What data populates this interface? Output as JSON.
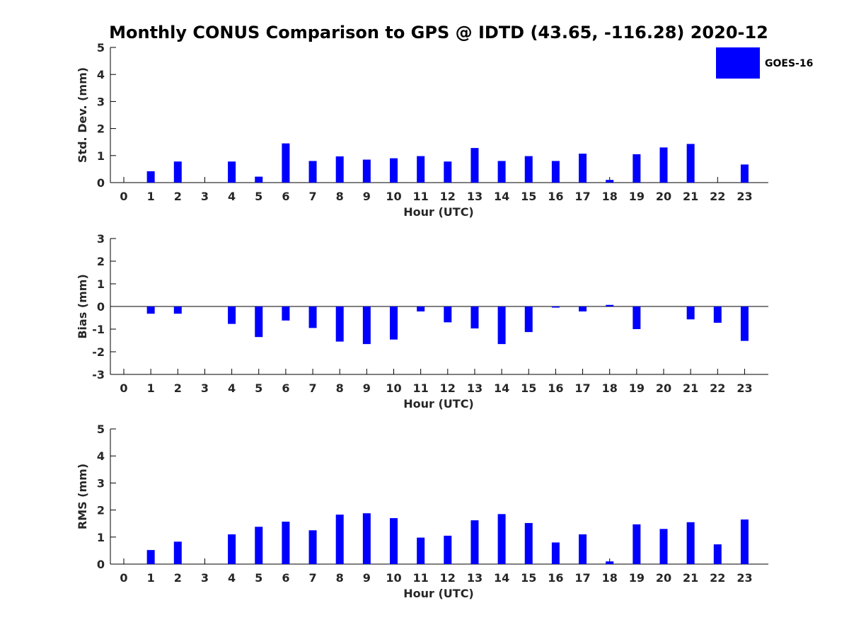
{
  "figure": {
    "title": "Monthly CONUS Comparison to GPS @ IDTD (43.65, -116.28) 2020-12"
  },
  "legend": {
    "label": "GOES-16",
    "color": "#0000ff",
    "placement": "top-right"
  },
  "chart_data": [
    {
      "type": "bar",
      "title": "",
      "xlabel": "Hour (UTC)",
      "ylabel": "Std. Dev. (mm)",
      "ylim": [
        0,
        5
      ],
      "yticks": [
        0,
        1,
        2,
        3,
        4,
        5
      ],
      "categories": [
        "0",
        "1",
        "2",
        "3",
        "4",
        "5",
        "6",
        "7",
        "8",
        "9",
        "10",
        "11",
        "12",
        "13",
        "14",
        "15",
        "16",
        "17",
        "18",
        "19",
        "20",
        "21",
        "22",
        "23"
      ],
      "series": [
        {
          "name": "GOES-16",
          "color": "#0000ff",
          "values": [
            0,
            0.42,
            0.78,
            0,
            0.78,
            0.22,
            1.45,
            0.8,
            0.97,
            0.85,
            0.9,
            0.98,
            0.78,
            1.28,
            0.8,
            0.98,
            0.8,
            1.07,
            0.1,
            1.05,
            1.3,
            1.43,
            0,
            0.67
          ]
        }
      ],
      "grid": false
    },
    {
      "type": "bar",
      "title": "",
      "xlabel": "Hour (UTC)",
      "ylabel": "Bias (mm)",
      "ylim": [
        -3,
        3
      ],
      "yticks": [
        -3,
        -2,
        -1,
        0,
        1,
        2,
        3
      ],
      "categories": [
        "0",
        "1",
        "2",
        "3",
        "4",
        "5",
        "6",
        "7",
        "8",
        "9",
        "10",
        "11",
        "12",
        "13",
        "14",
        "15",
        "16",
        "17",
        "18",
        "19",
        "20",
        "21",
        "22",
        "23"
      ],
      "series": [
        {
          "name": "GOES-16",
          "color": "#0000ff",
          "values": [
            0,
            -0.32,
            -0.32,
            0,
            -0.77,
            -1.35,
            -0.62,
            -0.95,
            -1.55,
            -1.66,
            -1.46,
            -0.22,
            -0.7,
            -0.97,
            -1.66,
            -1.13,
            -0.05,
            -0.22,
            0.07,
            -1.0,
            0,
            -0.57,
            -0.72,
            -1.52
          ]
        }
      ],
      "grid": false
    },
    {
      "type": "bar",
      "title": "",
      "xlabel": "Hour (UTC)",
      "ylabel": "RMS (mm)",
      "ylim": [
        0,
        5
      ],
      "yticks": [
        0,
        1,
        2,
        3,
        4,
        5
      ],
      "categories": [
        "0",
        "1",
        "2",
        "3",
        "4",
        "5",
        "6",
        "7",
        "8",
        "9",
        "10",
        "11",
        "12",
        "13",
        "14",
        "15",
        "16",
        "17",
        "18",
        "19",
        "20",
        "21",
        "22",
        "23"
      ],
      "series": [
        {
          "name": "GOES-16",
          "color": "#0000ff",
          "values": [
            0,
            0.52,
            0.83,
            0,
            1.1,
            1.38,
            1.57,
            1.25,
            1.83,
            1.88,
            1.7,
            0.98,
            1.05,
            1.62,
            1.85,
            1.52,
            0.8,
            1.1,
            0.1,
            1.47,
            1.3,
            1.55,
            0.73,
            1.65
          ]
        }
      ],
      "grid": false
    }
  ]
}
